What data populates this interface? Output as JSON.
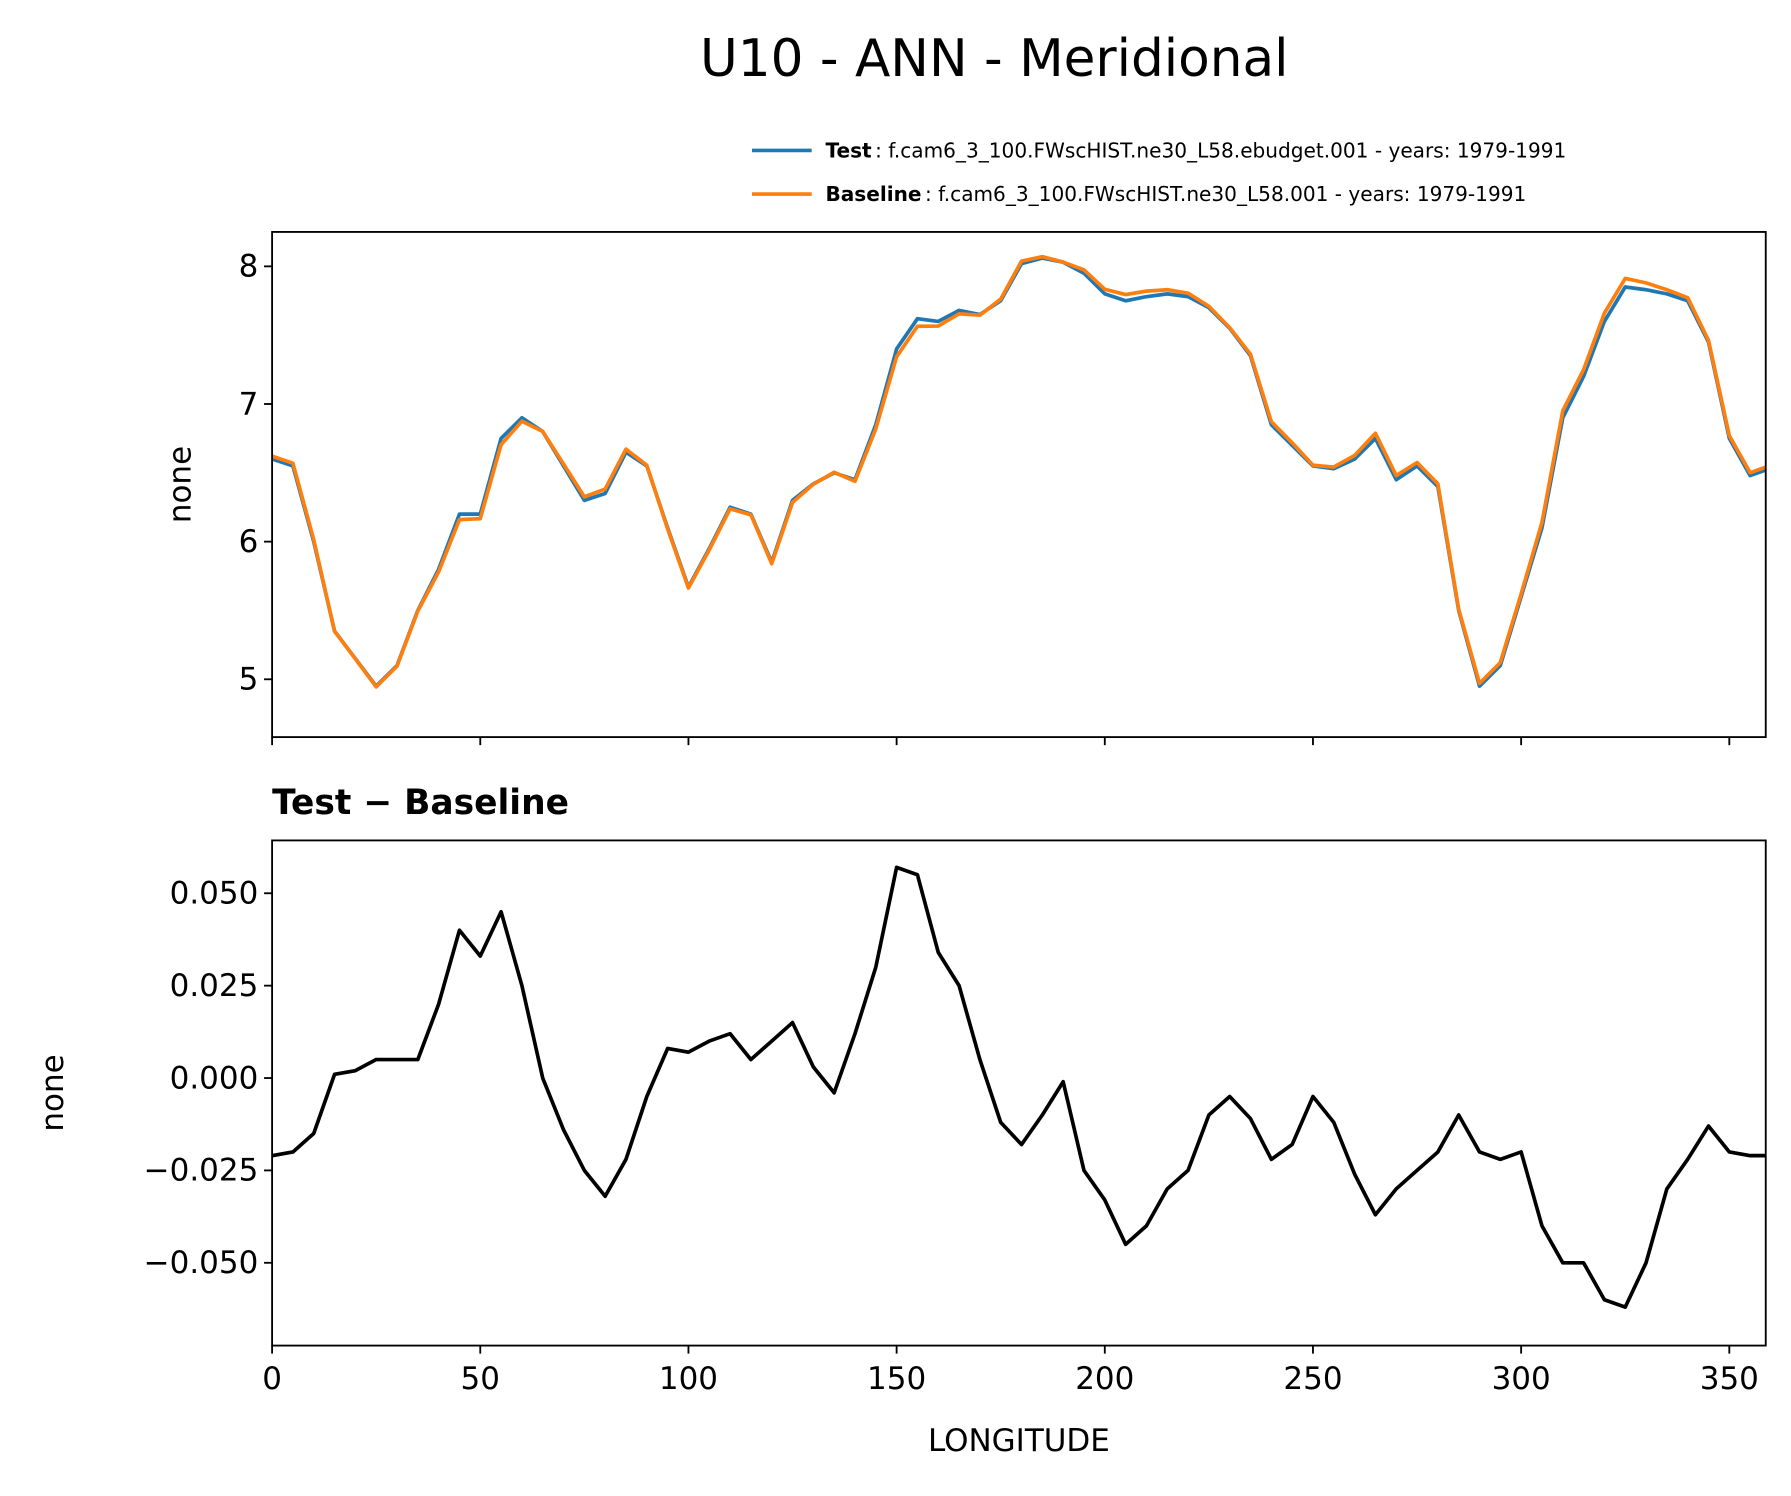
{
  "chart_data": [
    {
      "type": "line",
      "title": "U10 - ANN - Meridional",
      "ylabel": "none",
      "x": [
        0,
        5,
        10,
        15,
        20,
        25,
        30,
        35,
        40,
        45,
        50,
        55,
        60,
        65,
        70,
        75,
        80,
        85,
        90,
        95,
        100,
        105,
        110,
        115,
        120,
        125,
        130,
        135,
        140,
        145,
        150,
        155,
        160,
        165,
        170,
        175,
        180,
        185,
        190,
        195,
        200,
        205,
        210,
        215,
        220,
        225,
        230,
        235,
        240,
        245,
        250,
        255,
        260,
        265,
        270,
        275,
        280,
        285,
        290,
        295,
        300,
        305,
        310,
        315,
        320,
        325,
        330,
        335,
        340,
        345,
        350,
        355,
        358.75
      ],
      "xlim": [
        0,
        358.75
      ],
      "xticks": [
        0,
        50,
        100,
        150,
        200,
        250,
        300,
        350
      ],
      "ylim": [
        4.58,
        8.25
      ],
      "yticks": [
        5,
        6,
        7,
        8
      ],
      "series": [
        {
          "name": "Test",
          "description": ": f.cam6_3_100.FWscHIST.ne30_L58.ebudget.001 - years: 1979-1991",
          "color": "#1f77b4",
          "values": [
            6.6,
            6.55,
            6.0,
            5.35,
            5.15,
            4.95,
            5.1,
            5.5,
            5.8,
            6.2,
            6.2,
            6.75,
            6.9,
            6.8,
            6.55,
            6.3,
            6.35,
            6.65,
            6.55,
            6.1,
            5.67,
            5.95,
            6.25,
            6.2,
            5.85,
            6.3,
            6.42,
            6.5,
            6.45,
            6.85,
            7.4,
            7.62,
            7.6,
            7.68,
            7.65,
            7.75,
            8.02,
            8.06,
            8.03,
            7.95,
            7.8,
            7.75,
            7.78,
            7.8,
            7.78,
            7.7,
            7.55,
            7.35,
            6.85,
            6.7,
            6.55,
            6.53,
            6.6,
            6.75,
            6.45,
            6.55,
            6.4,
            5.5,
            4.95,
            5.1,
            5.6,
            6.1,
            6.9,
            7.2,
            7.6,
            7.85,
            7.83,
            7.8,
            7.75,
            7.45,
            6.75,
            6.48,
            6.52
          ]
        },
        {
          "name": "Baseline",
          "description": ": f.cam6_3_100.FWscHIST.ne30_L58.001 - years: 1979-1991",
          "color": "#ff7f0e",
          "values": [
            6.621,
            6.57,
            6.015,
            5.349,
            5.148,
            4.945,
            5.095,
            5.495,
            5.78,
            6.16,
            6.167,
            6.705,
            6.875,
            6.8,
            6.564,
            6.325,
            6.382,
            6.672,
            6.555,
            6.092,
            5.663,
            5.94,
            6.238,
            6.195,
            5.84,
            6.285,
            6.417,
            6.504,
            6.438,
            6.82,
            7.343,
            7.565,
            7.566,
            7.655,
            7.645,
            7.762,
            8.038,
            8.07,
            8.031,
            7.975,
            7.833,
            7.795,
            7.82,
            7.83,
            7.805,
            7.71,
            7.555,
            7.361,
            6.872,
            6.718,
            6.555,
            6.542,
            6.626,
            6.787,
            6.48,
            6.575,
            6.42,
            5.51,
            4.97,
            5.122,
            5.62,
            6.14,
            6.95,
            7.25,
            7.66,
            7.912,
            7.88,
            7.83,
            7.772,
            7.463,
            6.77,
            6.501,
            6.541
          ]
        }
      ]
    },
    {
      "type": "line",
      "title": "Test − Baseline",
      "ylabel": "none",
      "xlabel": "LONGITUDE",
      "x": [
        0,
        5,
        10,
        15,
        20,
        25,
        30,
        35,
        40,
        45,
        50,
        55,
        60,
        65,
        70,
        75,
        80,
        85,
        90,
        95,
        100,
        105,
        110,
        115,
        120,
        125,
        130,
        135,
        140,
        145,
        150,
        155,
        160,
        165,
        170,
        175,
        180,
        185,
        190,
        195,
        200,
        205,
        210,
        215,
        220,
        225,
        230,
        235,
        240,
        245,
        250,
        255,
        260,
        265,
        270,
        275,
        280,
        285,
        290,
        295,
        300,
        305,
        310,
        315,
        320,
        325,
        330,
        335,
        340,
        345,
        350,
        355,
        358.75
      ],
      "xlim": [
        0,
        358.75
      ],
      "xticks": [
        0,
        50,
        100,
        150,
        200,
        250,
        300,
        350
      ],
      "ylim": [
        -0.0724,
        0.0643
      ],
      "yticks": [
        {
          "value": 0.05,
          "label": "0.050"
        },
        {
          "value": 0.025,
          "label": "0.025"
        },
        {
          "value": 0,
          "label": "0.000"
        },
        {
          "value": -0.025,
          "label": "−0.025"
        },
        {
          "value": -0.05,
          "label": "−0.050"
        }
      ],
      "series": [
        {
          "color": "#000000",
          "values": [
            -0.021,
            -0.02,
            -0.015,
            0.001,
            0.002,
            0.005,
            0.005,
            0.005,
            0.02,
            0.04,
            0.033,
            0.045,
            0.025,
            0.0,
            -0.014,
            -0.025,
            -0.032,
            -0.022,
            -0.005,
            0.008,
            0.007,
            0.01,
            0.012,
            0.005,
            0.01,
            0.015,
            0.003,
            -0.004,
            0.012,
            0.03,
            0.057,
            0.055,
            0.034,
            0.025,
            0.005,
            -0.012,
            -0.018,
            -0.01,
            -0.001,
            -0.025,
            -0.033,
            -0.045,
            -0.04,
            -0.03,
            -0.025,
            -0.01,
            -0.005,
            -0.011,
            -0.022,
            -0.018,
            -0.005,
            -0.012,
            -0.026,
            -0.037,
            -0.03,
            -0.025,
            -0.02,
            -0.01,
            -0.02,
            -0.022,
            -0.02,
            -0.04,
            -0.05,
            -0.05,
            -0.06,
            -0.062,
            -0.05,
            -0.03,
            -0.022,
            -0.013,
            -0.02,
            -0.021,
            -0.021
          ]
        }
      ]
    }
  ]
}
